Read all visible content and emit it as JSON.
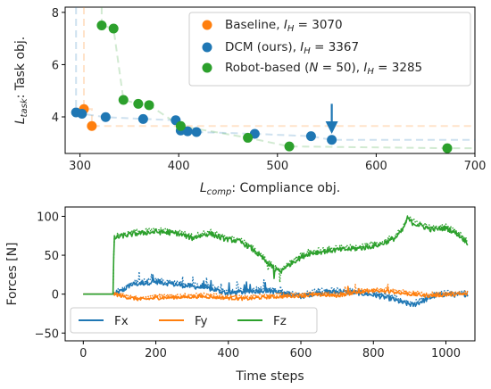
{
  "chart_data": [
    {
      "type": "scatter",
      "xlabel_sym": "L",
      "xlabel_sub": "comp",
      "xlabel_text": ": Compliance obj.",
      "ylabel_sym": "L",
      "ylabel_sub": "task",
      "ylabel_text": ": Task obj.",
      "xlim": [
        285,
        700
      ],
      "ylim": [
        2.6,
        8.2
      ],
      "xticks": [
        300,
        400,
        500,
        600,
        700
      ],
      "yticks": [
        4,
        6,
        8
      ],
      "legend": "top-right",
      "series": [
        {
          "name": "Baseline, I_H = 3070",
          "legend_main": "Baseline, ",
          "legend_sym": "I",
          "legend_sub": "H",
          "legend_val": " = 3070",
          "color": "#ff7f0e",
          "points": [
            [
              304,
              4.3
            ],
            [
              312,
              3.65
            ]
          ],
          "frontier": [
            [
              304,
              8.2
            ],
            [
              304,
              4.3
            ],
            [
              312,
              4.3
            ],
            [
              312,
              3.65
            ],
            [
              700,
              3.65
            ]
          ]
        },
        {
          "name": "DCM (ours), I_H = 3367",
          "legend_main": "DCM (ours), ",
          "legend_sym": "I",
          "legend_sub": "H",
          "legend_val": " = 3367",
          "color": "#1f77b4",
          "points": [
            [
              296,
              4.17
            ],
            [
              302,
              4.12
            ],
            [
              326,
              3.99
            ],
            [
              364,
              3.92
            ],
            [
              397,
              3.87
            ],
            [
              402,
              3.48
            ],
            [
              409,
              3.45
            ],
            [
              418,
              3.42
            ],
            [
              477,
              3.35
            ],
            [
              534,
              3.26
            ],
            [
              555,
              3.12
            ]
          ],
          "frontier": [
            [
              296,
              8.2
            ],
            [
              296,
              4.17
            ],
            [
              302,
              4.12
            ],
            [
              326,
              3.99
            ],
            [
              364,
              3.92
            ],
            [
              397,
              3.87
            ],
            [
              402,
              3.48
            ],
            [
              409,
              3.45
            ],
            [
              418,
              3.42
            ],
            [
              477,
              3.35
            ],
            [
              534,
              3.26
            ],
            [
              555,
              3.12
            ],
            [
              700,
              3.12
            ]
          ]
        },
        {
          "name": "Robot-based (N = 50), I_H = 3285",
          "legend_main": "Robot-based (",
          "legend_sym": "N",
          "legend_mid": " = 50), ",
          "legend_sym2": "I",
          "legend_sub": "H",
          "legend_val": " = 3285",
          "color": "#2ca02c",
          "points": [
            [
              322,
              7.5
            ],
            [
              334,
              7.38
            ],
            [
              344,
              4.65
            ],
            [
              359,
              4.5
            ],
            [
              370,
              4.45
            ],
            [
              402,
              3.65
            ],
            [
              470,
              3.2
            ],
            [
              512,
              2.87
            ],
            [
              672,
              2.8
            ]
          ],
          "frontier": [
            [
              322,
              8.2
            ],
            [
              322,
              7.5
            ],
            [
              334,
              7.38
            ],
            [
              344,
              4.65
            ],
            [
              359,
              4.5
            ],
            [
              370,
              4.45
            ],
            [
              402,
              3.65
            ],
            [
              470,
              3.2
            ],
            [
              512,
              2.87
            ],
            [
              672,
              2.8
            ],
            [
              700,
              2.8
            ]
          ]
        }
      ],
      "annotations": [
        {
          "type": "arrow",
          "x": 555,
          "y_from": 4.5,
          "y_to": 3.35,
          "color": "#1f77b4"
        }
      ]
    },
    {
      "type": "line",
      "xlabel": "Time steps",
      "ylabel": "Forces [N]",
      "xlim": [
        -50,
        1080
      ],
      "ylim": [
        -60,
        112
      ],
      "xticks": [
        0,
        200,
        400,
        600,
        800,
        1000
      ],
      "yticks": [
        -50,
        0,
        50,
        100
      ],
      "legend": "bottom-left",
      "series": [
        {
          "name": "Fx",
          "color": "#1f77b4",
          "x_end": 1060,
          "contact_start": 85,
          "keys": [
            [
              0,
              0
            ],
            [
              85,
              0
            ],
            [
              110,
              5
            ],
            [
              130,
              12
            ],
            [
              160,
              14
            ],
            [
              200,
              16
            ],
            [
              260,
              12
            ],
            [
              320,
              9
            ],
            [
              360,
              6
            ],
            [
              380,
              3
            ],
            [
              400,
              1
            ],
            [
              450,
              3
            ],
            [
              500,
              5
            ],
            [
              530,
              3
            ],
            [
              560,
              0
            ],
            [
              600,
              -3
            ],
            [
              650,
              2
            ],
            [
              700,
              3
            ],
            [
              750,
              2
            ],
            [
              800,
              -1
            ],
            [
              850,
              -6
            ],
            [
              880,
              -11
            ],
            [
              910,
              -14
            ],
            [
              940,
              -8
            ],
            [
              970,
              -2
            ],
            [
              1000,
              0
            ],
            [
              1030,
              -1
            ],
            [
              1060,
              0
            ]
          ]
        },
        {
          "name": "Fy",
          "color": "#ff7f0e",
          "x_end": 1060,
          "contact_start": 85,
          "keys": [
            [
              0,
              0
            ],
            [
              85,
              0
            ],
            [
              120,
              -4
            ],
            [
              160,
              -7
            ],
            [
              200,
              -5
            ],
            [
              260,
              -4
            ],
            [
              330,
              -3
            ],
            [
              400,
              -5
            ],
            [
              450,
              -6
            ],
            [
              500,
              -4
            ],
            [
              550,
              -3
            ],
            [
              600,
              -2
            ],
            [
              650,
              -1
            ],
            [
              700,
              -2
            ],
            [
              750,
              2
            ],
            [
              800,
              4
            ],
            [
              850,
              3
            ],
            [
              900,
              0
            ],
            [
              950,
              -2
            ],
            [
              1000,
              -1
            ],
            [
              1060,
              0
            ]
          ]
        },
        {
          "name": "Fz",
          "color": "#2ca02c",
          "x_end": 1060,
          "contact_start": 85,
          "keys": [
            [
              0,
              0
            ],
            [
              82,
              0
            ],
            [
              85,
              72
            ],
            [
              110,
              75
            ],
            [
              150,
              78
            ],
            [
              200,
              80
            ],
            [
              260,
              78
            ],
            [
              300,
              72
            ],
            [
              330,
              76
            ],
            [
              350,
              78
            ],
            [
              380,
              72
            ],
            [
              430,
              68
            ],
            [
              460,
              60
            ],
            [
              490,
              48
            ],
            [
              520,
              35
            ],
            [
              545,
              28
            ],
            [
              560,
              35
            ],
            [
              580,
              42
            ],
            [
              620,
              52
            ],
            [
              680,
              56
            ],
            [
              740,
              58
            ],
            [
              780,
              60
            ],
            [
              820,
              64
            ],
            [
              860,
              72
            ],
            [
              880,
              82
            ],
            [
              895,
              98
            ],
            [
              905,
              92
            ],
            [
              930,
              88
            ],
            [
              960,
              83
            ],
            [
              1000,
              85
            ],
            [
              1030,
              78
            ],
            [
              1060,
              66
            ]
          ]
        }
      ]
    }
  ]
}
